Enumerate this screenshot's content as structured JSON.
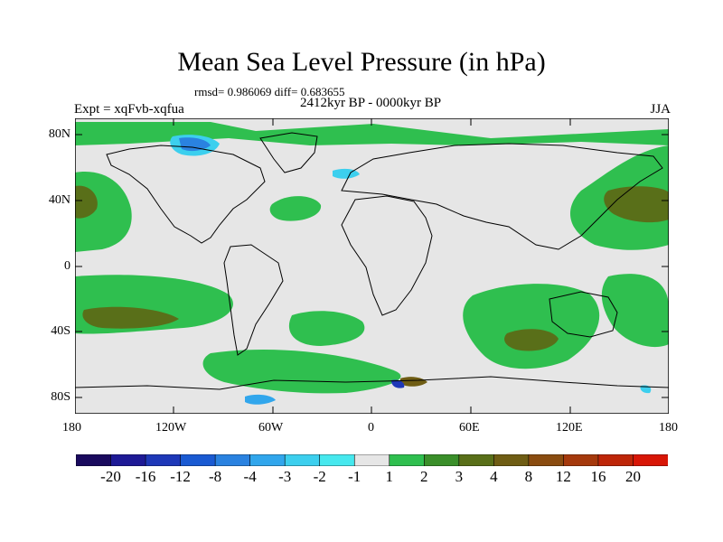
{
  "title": "Mean Sea Level Pressure (in hPa)",
  "stats_line": "rmsd= 0.986069 diff= 0.683655",
  "period": "2412kyr BP - 0000kyr BP",
  "experiment": "Expt = xqFvb-xqfua",
  "season": "JJA",
  "axes": {
    "y_ticks": [
      "80N",
      "40N",
      "0",
      "40S",
      "80S"
    ],
    "x_ticks": [
      "180",
      "120W",
      "60W",
      "0",
      "60E",
      "120E",
      "180"
    ]
  },
  "colorbar": {
    "colors": [
      "#1a0a5e",
      "#1e1a96",
      "#1e38b8",
      "#1a5ad2",
      "#2a82e0",
      "#31a6ec",
      "#3ccfee",
      "#46e8ee",
      "#e6e6e6",
      "#2fbf4f",
      "#3a8f2a",
      "#596f19",
      "#6f5d14",
      "#8a4c10",
      "#a5390c",
      "#be2608",
      "#d81606"
    ],
    "labels": [
      "-20",
      "-16",
      "-12",
      "-8",
      "-4",
      "-3",
      "-2",
      "-1",
      "1",
      "2",
      "3",
      "4",
      "8",
      "12",
      "16",
      "20"
    ]
  },
  "palette": {
    "background": "#e6e6e6",
    "pos_light": "#2fbf4f",
    "pos_mid": "#3a8f2a",
    "pos_dark": "#596f19",
    "pos_brown": "#6f5d14",
    "neg_light": "#3ccfee",
    "neg_mid": "#2a82e0",
    "neg_dark": "#1e38b8"
  }
}
